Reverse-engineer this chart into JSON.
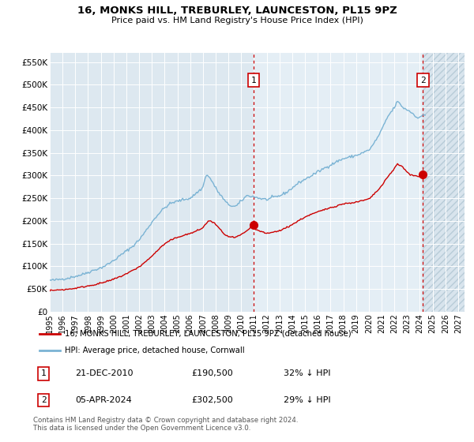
{
  "title": "16, MONKS HILL, TREBURLEY, LAUNCESTON, PL15 9PZ",
  "subtitle": "Price paid vs. HM Land Registry's House Price Index (HPI)",
  "hpi_label": "HPI: Average price, detached house, Cornwall",
  "property_label": "16, MONKS HILL, TREBURLEY, LAUNCESTON, PL15 9PZ (detached house)",
  "footnote": "Contains HM Land Registry data © Crown copyright and database right 2024.\nThis data is licensed under the Open Government Licence v3.0.",
  "transaction1_date": "21-DEC-2010",
  "transaction1_price": "£190,500",
  "transaction1_pct": "32% ↓ HPI",
  "transaction2_date": "05-APR-2024",
  "transaction2_price": "£302,500",
  "transaction2_pct": "29% ↓ HPI",
  "ylim": [
    0,
    570000
  ],
  "yticks": [
    0,
    50000,
    100000,
    150000,
    200000,
    250000,
    300000,
    350000,
    400000,
    450000,
    500000,
    550000
  ],
  "ytick_labels": [
    "£0",
    "£50K",
    "£100K",
    "£150K",
    "£200K",
    "£250K",
    "£300K",
    "£350K",
    "£400K",
    "£450K",
    "£500K",
    "£550K"
  ],
  "hpi_color": "#7ab3d4",
  "property_color": "#cc0000",
  "dashed_line_color": "#cc0000",
  "bg_color": "#dde8f0",
  "highlight_color": "#e4eef5",
  "hatch_bg_color": "#d8e4ed",
  "grid_color": "#ffffff",
  "transaction1_x": 2010.97,
  "transaction2_x": 2024.25,
  "t1_y": 190500,
  "t2_y": 302500,
  "xmin": 1995.0,
  "xmax": 2027.5,
  "xticks": [
    1995,
    1996,
    1997,
    1998,
    1999,
    2000,
    2001,
    2002,
    2003,
    2004,
    2005,
    2006,
    2007,
    2008,
    2009,
    2010,
    2011,
    2012,
    2013,
    2014,
    2015,
    2016,
    2017,
    2018,
    2019,
    2020,
    2021,
    2022,
    2023,
    2024,
    2025,
    2026,
    2027
  ],
  "figsize": [
    6.0,
    5.6
  ],
  "dpi": 100
}
